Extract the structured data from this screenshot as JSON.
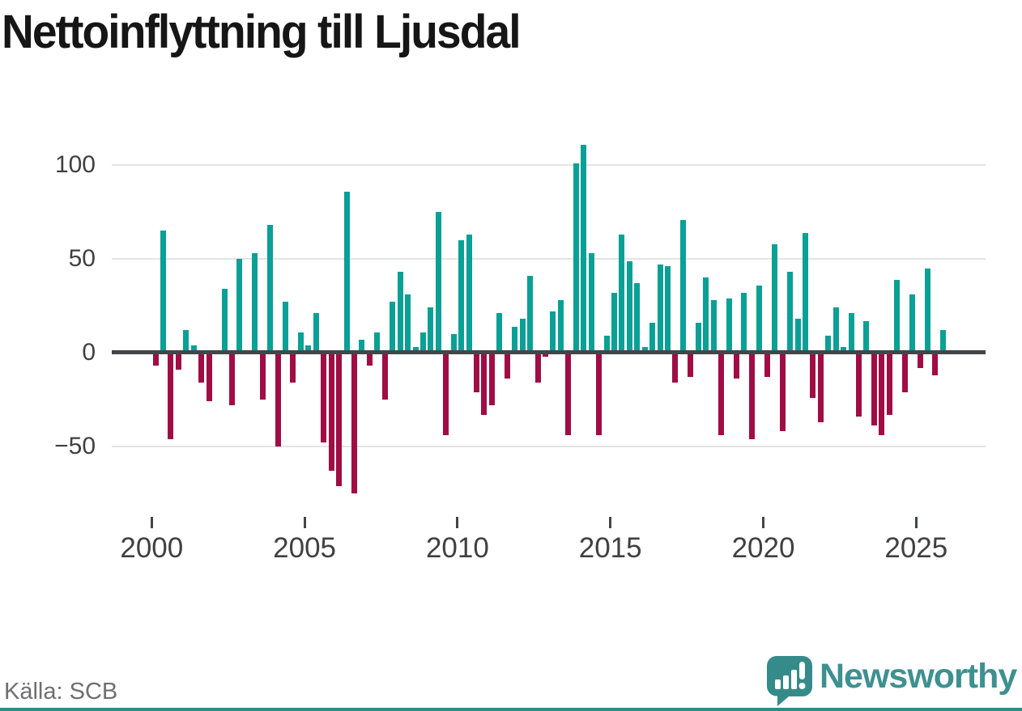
{
  "title": "Nettoinflyttning till Ljusdal",
  "source": {
    "label": "Källa: SCB"
  },
  "branding": {
    "logo_text": "Newsworthy",
    "logo_icon": "newsworthy-bars-exclamation-icon"
  },
  "colors": {
    "positive": "#0aa096",
    "negative": "#a00d45",
    "axis": "#424648",
    "grid": "#e4e4e4",
    "tick_text": "#404040",
    "muted_text": "#6e6e73",
    "brand": "#3f9090",
    "brand_icon": "#348b8a",
    "footer_strip": "#2e8c87"
  },
  "chart_data": {
    "type": "bar",
    "title": "Nettoinflyttning till Ljusdal",
    "frequency": "quarterly",
    "start": "2000-Q1",
    "end": "2025-Q4",
    "x_tick_labels": [
      "2000",
      "2005",
      "2010",
      "2015",
      "2020",
      "2025"
    ],
    "y_tick_values": [
      100,
      50,
      0,
      -50
    ],
    "y_tick_labels": [
      "100",
      "50",
      "0",
      "−50"
    ],
    "ylim": [
      -80,
      115
    ],
    "grid": "horizontal-only",
    "legend": "none",
    "values": [
      -7,
      65,
      -46,
      -9,
      12,
      4,
      -16,
      -26,
      0,
      34,
      -28,
      50,
      0,
      53,
      -25,
      68,
      -50,
      27,
      -16,
      11,
      4,
      21,
      -48,
      -63,
      -71,
      86,
      -75,
      7,
      -7,
      11,
      -25,
      27,
      43,
      31,
      3,
      11,
      24,
      75,
      -44,
      10,
      60,
      63,
      -21,
      -33,
      -28,
      21,
      -14,
      14,
      18,
      41,
      -16,
      -2,
      22,
      28,
      -44,
      101,
      111,
      53,
      -44,
      9,
      32,
      63,
      49,
      37,
      3,
      16,
      47,
      46,
      -16,
      71,
      -13,
      16,
      40,
      28,
      -44,
      29,
      -14,
      32,
      -46,
      36,
      -13,
      58,
      -42,
      43,
      18,
      64,
      -24,
      -37,
      9,
      24,
      3,
      21,
      -34,
      17,
      -39,
      -44,
      -33,
      39,
      -21,
      31,
      -8,
      45,
      -12,
      12
    ]
  }
}
